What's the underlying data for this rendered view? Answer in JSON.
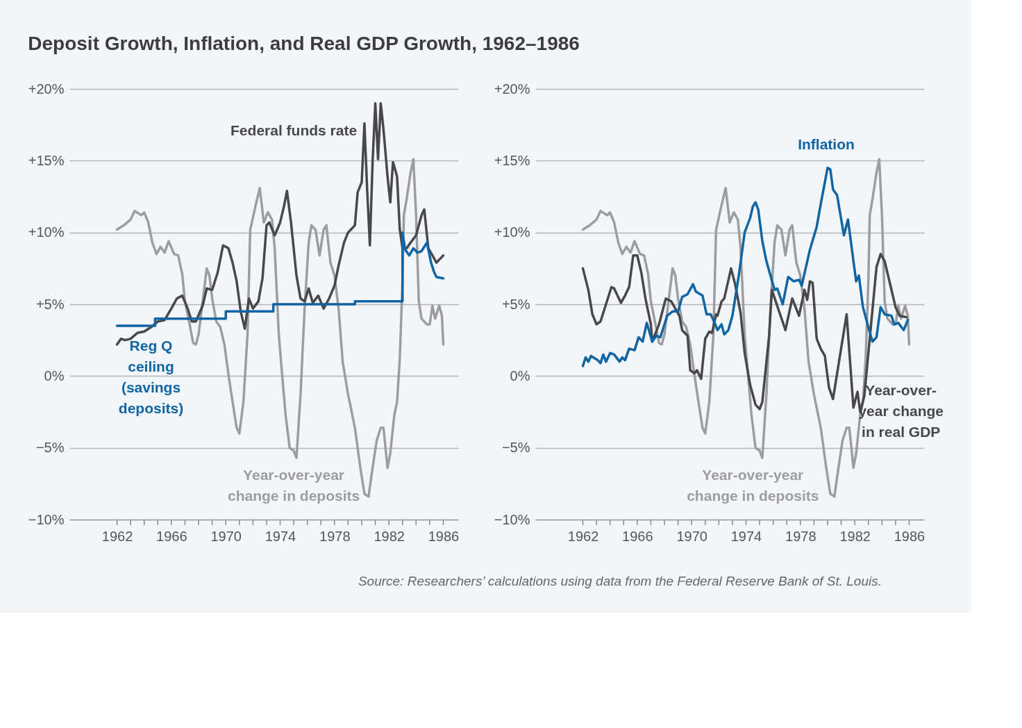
{
  "chart_data": [
    {
      "type": "line",
      "title": "Deposit Growth, Inflation, and Real GDP Growth, 1962–1986",
      "xlim": [
        1958.5,
        1987.1
      ],
      "ylim": [
        -10,
        20
      ],
      "yticks": [
        {
          "value": -10,
          "label": "−10%"
        },
        {
          "value": -5,
          "label": "−5%"
        },
        {
          "value": 0,
          "label": "0%"
        },
        {
          "value": 5,
          "label": "+5%"
        },
        {
          "value": 10,
          "label": "+10%"
        },
        {
          "value": 15,
          "label": "+15%"
        },
        {
          "value": 20,
          "label": "+20%"
        }
      ],
      "xticks": [
        1962,
        {
          "value": 1963,
          "label": null
        },
        {
          "value": 1964,
          "label": null
        },
        {
          "value": 1965,
          "label": null
        },
        1966,
        {
          "value": 1967,
          "label": null
        },
        {
          "value": 1968,
          "label": null
        },
        {
          "value": 1969,
          "label": null
        },
        1970,
        {
          "value": 1971,
          "label": null
        },
        {
          "value": 1972,
          "label": null
        },
        {
          "value": 1973,
          "label": null
        },
        1974,
        {
          "value": 1975,
          "label": null
        },
        {
          "value": 1976,
          "label": null
        },
        {
          "value": 1977,
          "label": null
        },
        1978,
        {
          "value": 1979,
          "label": null
        },
        {
          "value": 1980,
          "label": null
        },
        {
          "value": 1981,
          "label": null
        },
        1982,
        {
          "value": 1983,
          "label": null
        },
        {
          "value": 1984,
          "label": null
        },
        {
          "value": 1985,
          "label": null
        },
        1986
      ],
      "grid": "y",
      "series": [
        {
          "name": "Year-over-year change in deposits",
          "color": "#9d9d9f",
          "x": [
            1962.0,
            1962.5,
            1963.0,
            1963.3,
            1963.8,
            1964.0,
            1964.3,
            1964.6,
            1964.9,
            1965.2,
            1965.5,
            1965.8,
            1966.2,
            1966.5,
            1966.8,
            1967.0,
            1967.3,
            1967.6,
            1967.8,
            1968.0,
            1968.3,
            1968.6,
            1968.8,
            1969.0,
            1969.3,
            1969.6,
            1969.9,
            1970.2,
            1970.5,
            1970.8,
            1971.0,
            1971.3,
            1971.6,
            1971.8,
            1972.2,
            1972.5,
            1972.8,
            1973.1,
            1973.4,
            1973.6,
            1973.9,
            1974.1,
            1974.4,
            1974.7,
            1975.0,
            1975.2,
            1975.5,
            1975.8,
            1976.1,
            1976.3,
            1976.6,
            1976.9,
            1977.2,
            1977.4,
            1977.7,
            1978.0,
            1978.3,
            1978.6,
            1979.0,
            1979.5,
            1979.9,
            1980.2,
            1980.5,
            1980.8,
            1981.1,
            1981.4,
            1981.6,
            1981.9,
            1982.1,
            1982.4,
            1982.6,
            1982.8,
            1983.0,
            1983.1,
            1983.3,
            1983.6,
            1983.8,
            1984.0,
            1984.2,
            1984.4,
            1984.8,
            1985.0,
            1985.2,
            1985.4,
            1985.7,
            1985.9,
            1986.0
          ],
          "values": [
            10.2,
            10.5,
            10.9,
            11.5,
            11.2,
            11.4,
            10.7,
            9.3,
            8.5,
            9.0,
            8.6,
            9.4,
            8.5,
            8.4,
            7.1,
            5.2,
            3.8,
            2.3,
            2.2,
            2.9,
            5.2,
            7.5,
            7.0,
            5.4,
            3.8,
            3.4,
            2.2,
            0.1,
            -1.8,
            -3.6,
            -4.0,
            -1.8,
            2.9,
            10.2,
            11.9,
            13.1,
            10.7,
            11.4,
            10.9,
            8.9,
            2.9,
            0.6,
            -2.7,
            -5.0,
            -5.2,
            -5.7,
            -1.3,
            4.7,
            9.3,
            10.5,
            10.2,
            8.4,
            10.2,
            10.5,
            7.9,
            7.0,
            4.7,
            1.0,
            -1.3,
            -3.6,
            -6.4,
            -8.2,
            -8.4,
            -6.4,
            -4.5,
            -3.6,
            -3.6,
            -6.4,
            -5.4,
            -2.7,
            -1.8,
            1.2,
            6.6,
            11.2,
            12.3,
            14.2,
            15.1,
            11.2,
            5.2,
            4.0,
            3.6,
            3.6,
            4.9,
            4.0,
            4.9,
            4.2,
            2.2
          ]
        },
        {
          "name": "Federal funds rate",
          "color": "#48484a",
          "x": [
            1962.0,
            1962.3,
            1962.6,
            1963.0,
            1963.5,
            1964.0,
            1964.5,
            1965.0,
            1965.5,
            1966.0,
            1966.4,
            1966.8,
            1967.2,
            1967.5,
            1967.8,
            1968.3,
            1968.6,
            1969.0,
            1969.4,
            1969.8,
            1970.2,
            1970.5,
            1970.8,
            1971.1,
            1971.4,
            1971.7,
            1972.0,
            1972.4,
            1972.7,
            1973.0,
            1973.2,
            1973.6,
            1974.0,
            1974.3,
            1974.5,
            1974.8,
            1975.2,
            1975.5,
            1975.8,
            1976.1,
            1976.4,
            1976.8,
            1977.2,
            1977.6,
            1978.0,
            1978.3,
            1978.7,
            1979.0,
            1979.5,
            1979.7,
            1980.0,
            1980.2,
            1980.4,
            1980.6,
            1980.8,
            1981.0,
            1981.2,
            1981.4,
            1981.6,
            1981.9,
            1982.1,
            1982.3,
            1982.6,
            1982.8,
            1983.0,
            1983.3,
            1983.6,
            1984.0,
            1984.4,
            1984.6,
            1984.9,
            1985.2,
            1985.5,
            1985.8,
            1986.0
          ],
          "values": [
            2.2,
            2.6,
            2.5,
            2.6,
            3.0,
            3.1,
            3.4,
            3.8,
            3.9,
            4.7,
            5.4,
            5.6,
            4.7,
            3.8,
            3.8,
            4.9,
            6.1,
            6.0,
            7.2,
            9.1,
            8.9,
            7.9,
            6.6,
            4.5,
            3.3,
            5.4,
            4.7,
            5.2,
            6.8,
            10.5,
            10.7,
            9.8,
            10.7,
            11.9,
            12.9,
            10.7,
            7.0,
            5.4,
            5.2,
            6.1,
            5.1,
            5.6,
            4.7,
            5.4,
            6.3,
            7.7,
            9.3,
            10.0,
            10.5,
            12.8,
            13.5,
            17.6,
            13.0,
            9.1,
            14.9,
            19.0,
            15.1,
            19.0,
            17.2,
            13.9,
            12.1,
            14.9,
            13.9,
            10.2,
            8.9,
            8.9,
            9.3,
            9.8,
            11.2,
            11.6,
            8.9,
            8.4,
            7.9,
            8.2,
            8.4
          ]
        },
        {
          "name": "Reg Q ceiling (savings deposits)",
          "color": "#0f65a3",
          "x": [
            1962.0,
            1964.8,
            1964.8,
            1970.0,
            1970.0,
            1973.5,
            1973.5,
            1979.5,
            1979.5,
            1983.0,
            1983.0,
            1983.2,
            1983.5,
            1983.8,
            1984.1,
            1984.4,
            1984.8,
            1985.1,
            1985.3,
            1985.5,
            1986.0
          ],
          "values": [
            3.5,
            3.5,
            4.0,
            4.0,
            4.5,
            4.5,
            5.0,
            5.0,
            5.2,
            5.2,
            10.0,
            8.8,
            8.4,
            8.9,
            8.6,
            8.7,
            9.3,
            7.9,
            7.3,
            6.9,
            6.8
          ]
        }
      ]
    },
    {
      "type": "line",
      "xlim": [
        1958.5,
        1987.1
      ],
      "ylim": [
        -10,
        20
      ],
      "yticks": [
        {
          "value": -10,
          "label": "−10%"
        },
        {
          "value": -5,
          "label": "−5%"
        },
        {
          "value": 0,
          "label": "0%"
        },
        {
          "value": 5,
          "label": "+5%"
        },
        {
          "value": 10,
          "label": "+10%"
        },
        {
          "value": 15,
          "label": "+15%"
        },
        {
          "value": 20,
          "label": "+20%"
        }
      ],
      "xticks": [
        1962,
        {
          "value": 1963,
          "label": null
        },
        {
          "value": 1964,
          "label": null
        },
        {
          "value": 1965,
          "label": null
        },
        1966,
        {
          "value": 1967,
          "label": null
        },
        {
          "value": 1968,
          "label": null
        },
        {
          "value": 1969,
          "label": null
        },
        1970,
        {
          "value": 1971,
          "label": null
        },
        {
          "value": 1972,
          "label": null
        },
        {
          "value": 1973,
          "label": null
        },
        1974,
        {
          "value": 1975,
          "label": null
        },
        {
          "value": 1976,
          "label": null
        },
        {
          "value": 1977,
          "label": null
        },
        1978,
        {
          "value": 1979,
          "label": null
        },
        {
          "value": 1980,
          "label": null
        },
        {
          "value": 1981,
          "label": null
        },
        1982,
        {
          "value": 1983,
          "label": null
        },
        {
          "value": 1984,
          "label": null
        },
        {
          "value": 1985,
          "label": null
        },
        1986
      ],
      "grid": "y",
      "annotations": [
        "Source: Researchers’ calculations using data from the Federal Reserve Bank of St. Louis."
      ],
      "series": [
        {
          "name": "Year-over-year change in deposits",
          "color": "#9d9d9f",
          "x": [
            1962.0,
            1962.5,
            1963.0,
            1963.3,
            1963.8,
            1964.0,
            1964.3,
            1964.6,
            1964.9,
            1965.2,
            1965.5,
            1965.8,
            1966.2,
            1966.5,
            1966.8,
            1967.0,
            1967.3,
            1967.6,
            1967.8,
            1968.0,
            1968.3,
            1968.6,
            1968.8,
            1969.0,
            1969.3,
            1969.6,
            1969.9,
            1970.2,
            1970.5,
            1970.8,
            1971.0,
            1971.3,
            1971.6,
            1971.8,
            1972.2,
            1972.5,
            1972.8,
            1973.1,
            1973.4,
            1973.6,
            1973.9,
            1974.1,
            1974.4,
            1974.7,
            1975.0,
            1975.2,
            1975.5,
            1975.8,
            1976.1,
            1976.3,
            1976.6,
            1976.9,
            1977.2,
            1977.4,
            1977.7,
            1978.0,
            1978.3,
            1978.6,
            1979.0,
            1979.5,
            1979.9,
            1980.2,
            1980.5,
            1980.8,
            1981.1,
            1981.4,
            1981.6,
            1981.9,
            1982.1,
            1982.4,
            1982.6,
            1982.8,
            1983.0,
            1983.1,
            1983.3,
            1983.6,
            1983.8,
            1984.0,
            1984.2,
            1984.4,
            1984.8,
            1985.0,
            1985.2,
            1985.4,
            1985.7,
            1985.9,
            1986.0
          ],
          "values": [
            10.2,
            10.5,
            10.9,
            11.5,
            11.2,
            11.4,
            10.7,
            9.3,
            8.5,
            9.0,
            8.6,
            9.4,
            8.5,
            8.4,
            7.1,
            5.2,
            3.8,
            2.3,
            2.2,
            2.9,
            5.2,
            7.5,
            7.0,
            5.4,
            3.8,
            3.4,
            2.2,
            0.1,
            -1.8,
            -3.6,
            -4.0,
            -1.8,
            2.9,
            10.2,
            11.9,
            13.1,
            10.7,
            11.4,
            10.9,
            8.9,
            2.9,
            0.6,
            -2.7,
            -5.0,
            -5.2,
            -5.7,
            -1.3,
            4.7,
            9.3,
            10.5,
            10.2,
            8.4,
            10.2,
            10.5,
            7.9,
            7.0,
            4.7,
            1.0,
            -1.3,
            -3.6,
            -6.4,
            -8.2,
            -8.4,
            -6.4,
            -4.5,
            -3.6,
            -3.6,
            -6.4,
            -5.4,
            -2.7,
            -1.8,
            1.2,
            6.6,
            11.2,
            12.3,
            14.2,
            15.1,
            11.2,
            5.2,
            4.0,
            3.6,
            3.6,
            4.9,
            4.0,
            4.9,
            4.2,
            2.2
          ]
        },
        {
          "name": "Year-over-year change in real GDP",
          "color": "#48484a",
          "x": [
            1962.0,
            1962.4,
            1962.7,
            1963.0,
            1963.3,
            1963.7,
            1964.1,
            1964.3,
            1964.8,
            1965.1,
            1965.4,
            1965.7,
            1966.0,
            1966.3,
            1966.6,
            1967.0,
            1967.1,
            1967.6,
            1968.1,
            1968.5,
            1969.1,
            1969.3,
            1969.7,
            1969.9,
            1970.2,
            1970.4,
            1970.7,
            1971.0,
            1971.3,
            1971.5,
            1971.8,
            1971.9,
            1972.2,
            1972.4,
            1972.9,
            1973.2,
            1973.6,
            1973.9,
            1974.3,
            1974.7,
            1975.0,
            1975.2,
            1975.7,
            1975.9,
            1976.9,
            1977.4,
            1977.9,
            1978.3,
            1978.5,
            1978.7,
            1978.9,
            1979.2,
            1979.5,
            1979.8,
            1980.1,
            1980.4,
            1981.4,
            1981.9,
            1982.2,
            1982.4,
            1982.7,
            1983.0,
            1983.6,
            1983.9,
            1984.2,
            1985.0,
            1985.3,
            1985.8
          ],
          "values": [
            7.5,
            6.0,
            4.3,
            3.6,
            3.8,
            5.0,
            6.2,
            6.1,
            5.1,
            5.6,
            6.2,
            8.4,
            8.4,
            7.2,
            5.4,
            3.6,
            2.4,
            3.6,
            5.4,
            5.2,
            4.2,
            3.2,
            2.8,
            0.4,
            0.2,
            0.4,
            -0.2,
            2.6,
            3.1,
            3.0,
            4.3,
            4.2,
            5.2,
            5.4,
            7.5,
            6.4,
            4.4,
            1.6,
            -0.6,
            -2.0,
            -2.3,
            -1.8,
            2.8,
            6.0,
            3.2,
            5.4,
            4.2,
            6.0,
            5.3,
            6.6,
            6.5,
            2.6,
            1.9,
            1.4,
            -0.8,
            -1.6,
            4.3,
            -2.2,
            -1.1,
            -2.5,
            -1.4,
            1.6,
            7.6,
            8.5,
            8.0,
            4.8,
            4.2,
            4.1
          ]
        },
        {
          "name": "Inflation",
          "color": "#0f65a3",
          "x": [
            1962.0,
            1962.2,
            1962.4,
            1962.6,
            1963.1,
            1963.3,
            1963.5,
            1963.7,
            1964.0,
            1964.3,
            1964.7,
            1964.9,
            1965.1,
            1965.4,
            1965.8,
            1966.1,
            1966.4,
            1966.7,
            1967.1,
            1967.4,
            1967.7,
            1968.2,
            1968.6,
            1969.0,
            1969.3,
            1969.7,
            1970.1,
            1970.3,
            1970.8,
            1971.1,
            1971.4,
            1971.7,
            1971.9,
            1972.2,
            1972.4,
            1972.7,
            1973.0,
            1973.5,
            1973.9,
            1974.3,
            1974.5,
            1974.7,
            1974.9,
            1975.2,
            1975.5,
            1976.1,
            1976.3,
            1976.7,
            1977.1,
            1977.5,
            1977.9,
            1978.1,
            1978.7,
            1979.2,
            1979.5,
            1980.0,
            1980.2,
            1980.4,
            1980.7,
            1981.2,
            1981.5,
            1982.1,
            1982.3,
            1982.6,
            1983.0,
            1983.3,
            1983.6,
            1983.9,
            1984.2,
            1984.7,
            1984.9,
            1985.2,
            1985.6,
            1985.9
          ],
          "values": [
            0.7,
            1.3,
            1.0,
            1.4,
            1.1,
            0.9,
            1.5,
            1.0,
            1.6,
            1.5,
            1.0,
            1.3,
            1.1,
            1.9,
            1.8,
            2.7,
            2.4,
            3.7,
            2.4,
            2.8,
            2.7,
            4.2,
            4.5,
            4.5,
            5.5,
            5.7,
            6.4,
            5.9,
            5.6,
            4.3,
            4.3,
            3.7,
            3.2,
            3.6,
            2.9,
            3.2,
            4.2,
            7.2,
            10.0,
            11.0,
            11.8,
            12.1,
            11.6,
            9.4,
            8.0,
            6.0,
            6.1,
            5.0,
            6.9,
            6.6,
            6.7,
            6.3,
            8.8,
            10.4,
            12.0,
            14.5,
            14.4,
            13.0,
            12.6,
            9.8,
            10.9,
            6.6,
            7.0,
            4.8,
            3.4,
            2.4,
            2.7,
            4.8,
            4.3,
            4.2,
            3.6,
            3.7,
            3.2,
            3.9
          ]
        }
      ]
    }
  ]
}
